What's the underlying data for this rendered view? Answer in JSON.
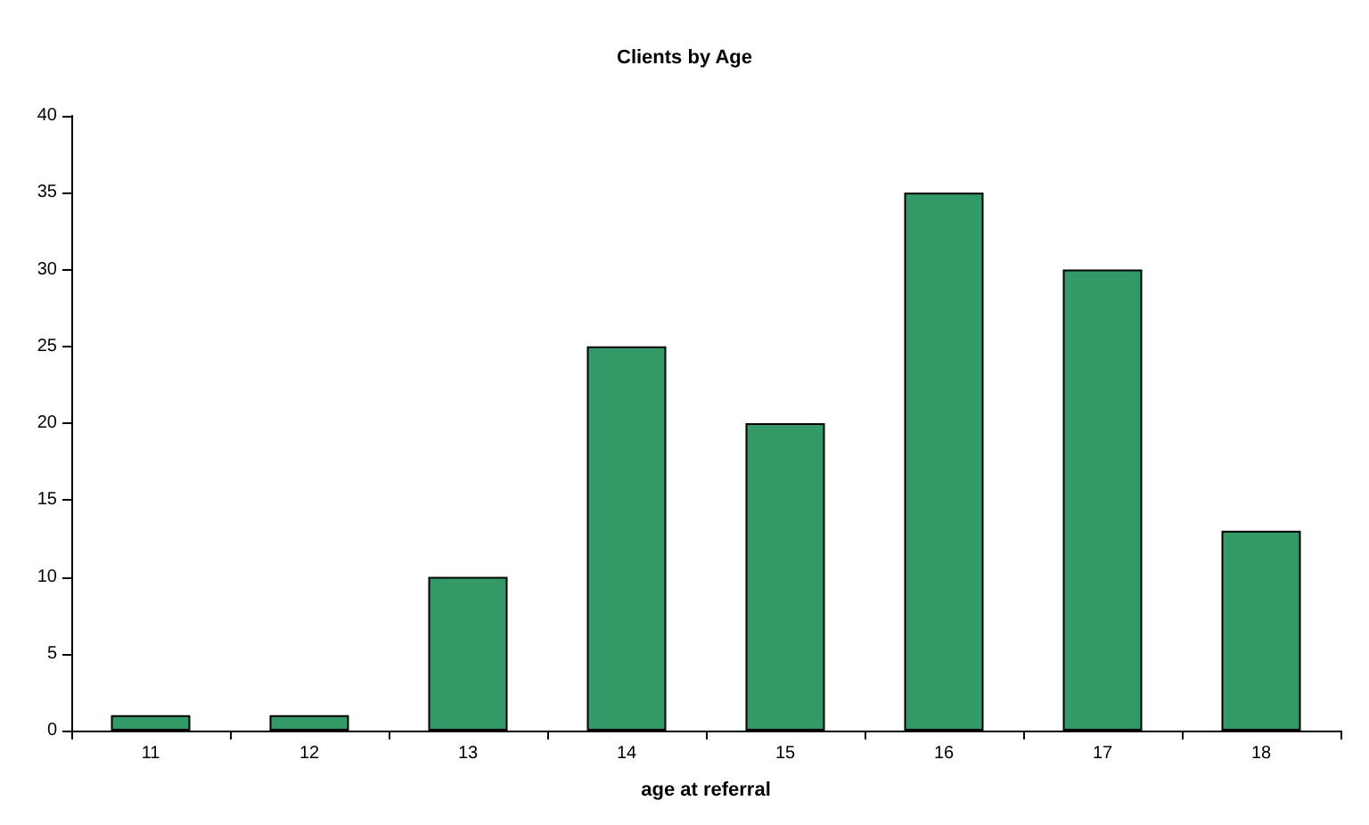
{
  "chart_data": {
    "type": "bar",
    "title": "Clients by Age",
    "xlabel": "age at referral",
    "categories": [
      "11",
      "12",
      "13",
      "14",
      "15",
      "16",
      "17",
      "18"
    ],
    "values": [
      1,
      1,
      10,
      25,
      20,
      35,
      30,
      13
    ],
    "color": "#339966",
    "ylim": [
      0,
      40
    ],
    "yticks": [
      0,
      5,
      10,
      15,
      20,
      25,
      30,
      35,
      40
    ]
  }
}
